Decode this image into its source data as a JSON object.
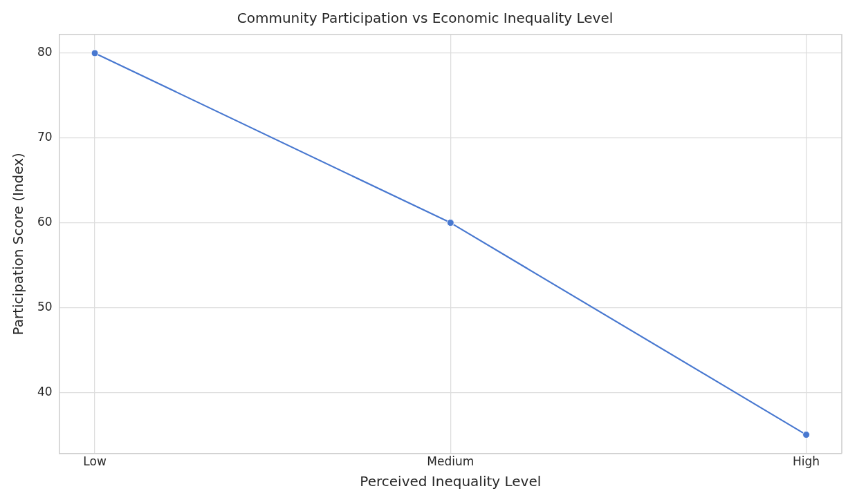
{
  "chart_data": {
    "type": "line",
    "title": "Community Participation vs Economic Inequality Level",
    "xlabel": "Perceived Inequality Level",
    "ylabel": "Participation Score (Index)",
    "categories": [
      "Low",
      "Medium",
      "High"
    ],
    "series": [
      {
        "color": "#4878d0",
        "values": [
          80,
          60,
          35
        ]
      }
    ],
    "ylim": [
      32.8,
      82.2
    ],
    "yticks": [
      40,
      50,
      60,
      70,
      80
    ],
    "grid": true,
    "legend": false,
    "marker": "circle",
    "line_style": "solid"
  }
}
